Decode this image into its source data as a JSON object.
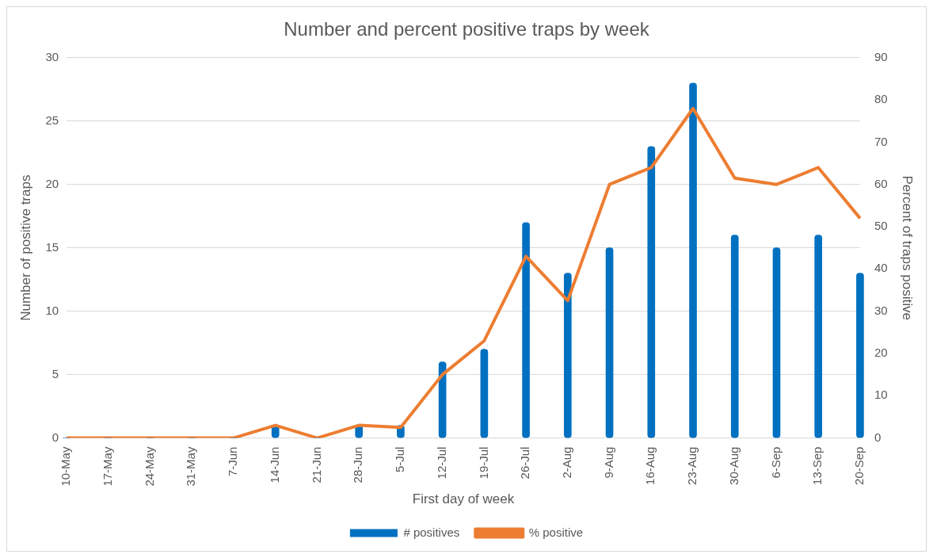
{
  "chart_data": {
    "type": "bar",
    "title": "Number and percent positive traps by week",
    "xlabel": "First day of week",
    "ylabel": "Number of positive traps",
    "y2label": "Percent of traps positive",
    "categories": [
      "10-May",
      "17-May",
      "24-May",
      "31-May",
      "7-Jun",
      "14-Jun",
      "21-Jun",
      "28-Jun",
      "5-Jul",
      "12-Jul",
      "19-Jul",
      "26-Jul",
      "2-Aug",
      "9-Aug",
      "16-Aug",
      "23-Aug",
      "30-Aug",
      "6-Sep",
      "13-Sep",
      "20-Sep"
    ],
    "series": [
      {
        "name": "# positives",
        "color": "#0070c0",
        "values": [
          0,
          0,
          0,
          0,
          0,
          1,
          0,
          1,
          1,
          6,
          7,
          17,
          13,
          15,
          23,
          28,
          16,
          15,
          16,
          13
        ]
      },
      {
        "name": "% positive",
        "type": "line",
        "axis": "y2",
        "color": "#ed7d31",
        "values": [
          0,
          0,
          0,
          0,
          0,
          3,
          0,
          3,
          2.5,
          15,
          23,
          43,
          32.5,
          60,
          64,
          78,
          61.5,
          60,
          64,
          52
        ]
      }
    ],
    "ylim": [
      0,
      30
    ],
    "yticks": [
      0,
      5,
      10,
      15,
      20,
      25,
      30
    ],
    "y2lim": [
      0,
      90
    ],
    "y2ticks": [
      0,
      10,
      20,
      30,
      40,
      50,
      60,
      70,
      80,
      90
    ],
    "grid": "y",
    "legend": "bottom",
    "marker": "none",
    "line_style": "solid"
  }
}
